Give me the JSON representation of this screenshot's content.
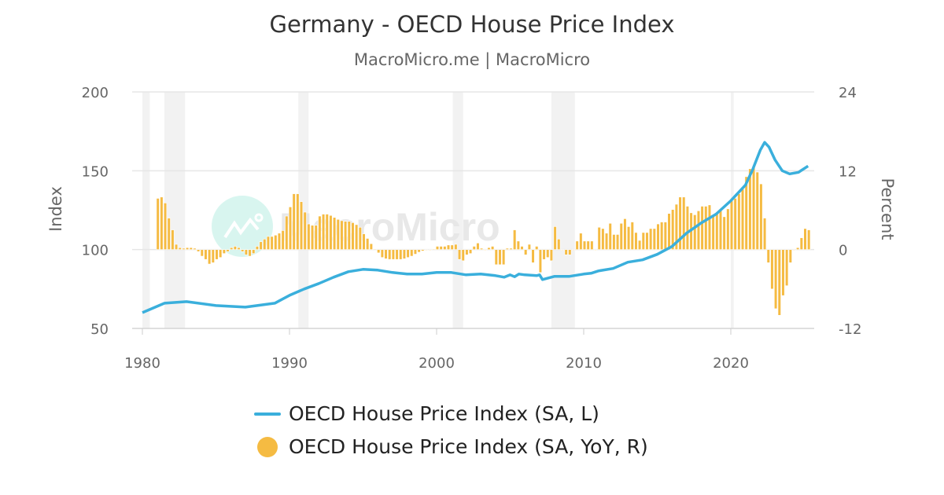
{
  "chart_data": {
    "type": "bar+line",
    "title": "Germany - OECD House Price Index",
    "subtitle": "MacroMicro.me | MacroMicro",
    "watermark": "MacroMicro",
    "x_ticks": [
      "1980",
      "1990",
      "2000",
      "2010",
      "2020"
    ],
    "x_range": [
      1980,
      2025.9
    ],
    "y_left": {
      "label": "Index",
      "range": [
        50,
        200
      ],
      "ticks": [
        "200",
        "150",
        "100",
        "50"
      ]
    },
    "y_right": {
      "label": "Percent",
      "range": [
        -12,
        24
      ],
      "ticks": [
        "24",
        "12",
        "0",
        "-12"
      ]
    },
    "grid": true,
    "legend_placement": "bottom",
    "recession_shading": [
      [
        1980.0,
        1980.5
      ],
      [
        1981.5,
        1982.9
      ],
      [
        1990.6,
        1991.3
      ],
      [
        2001.1,
        2001.8
      ],
      [
        2007.8,
        2009.4
      ],
      [
        2020.0,
        2020.2
      ]
    ],
    "series": [
      {
        "name": "OECD House Price Index (SA, L)",
        "type": "line",
        "axis": "left",
        "color": "#3aafdc",
        "points": [
          [
            1980,
            60
          ],
          [
            1981.5,
            66
          ],
          [
            1983,
            67
          ],
          [
            1985,
            64.5
          ],
          [
            1987,
            63.5
          ],
          [
            1989,
            66
          ],
          [
            1990,
            71
          ],
          [
            1991,
            75
          ],
          [
            1992,
            78.5
          ],
          [
            1993,
            82.5
          ],
          [
            1994,
            86
          ],
          [
            1995,
            87.5
          ],
          [
            1996,
            87
          ],
          [
            1997,
            85.5
          ],
          [
            1998,
            84.5
          ],
          [
            1999,
            84.5
          ],
          [
            2000,
            85.5
          ],
          [
            2001,
            85.5
          ],
          [
            2002,
            84
          ],
          [
            2003,
            84.5
          ],
          [
            2004,
            83.5
          ],
          [
            2004.6,
            82.5
          ],
          [
            2005,
            84
          ],
          [
            2005.3,
            82.8
          ],
          [
            2005.6,
            84.5
          ],
          [
            2006,
            84
          ],
          [
            2006.8,
            83.5
          ],
          [
            2007,
            84
          ],
          [
            2007.2,
            81
          ],
          [
            2008,
            83
          ],
          [
            2009,
            83
          ],
          [
            2010,
            84.5
          ],
          [
            2010.5,
            85
          ],
          [
            2011,
            86.5
          ],
          [
            2012,
            88
          ],
          [
            2013,
            92
          ],
          [
            2014,
            93.5
          ],
          [
            2015,
            97
          ],
          [
            2016,
            102
          ],
          [
            2017,
            110.5
          ],
          [
            2018,
            117
          ],
          [
            2019,
            122.5
          ],
          [
            2020,
            131
          ],
          [
            2021,
            141
          ],
          [
            2021.5,
            151
          ],
          [
            2022,
            163
          ],
          [
            2022.3,
            168
          ],
          [
            2022.6,
            165
          ],
          [
            2023,
            157
          ],
          [
            2023.5,
            150
          ],
          [
            2024,
            148
          ],
          [
            2024.6,
            149
          ],
          [
            2025.25,
            153
          ]
        ]
      },
      {
        "name": "OECD House Price Index (SA, YoY, R)",
        "type": "bar",
        "axis": "right",
        "color": "#f5bb42",
        "start_quarter": "1981Q1",
        "values": [
          7.8,
          8.0,
          7.1,
          4.8,
          3.0,
          0.8,
          0.3,
          0.2,
          0.3,
          0.3,
          0.2,
          -0.3,
          -1.0,
          -1.5,
          -2.2,
          -2.0,
          -1.5,
          -1.2,
          -0.6,
          -0.3,
          0.3,
          0.5,
          0.3,
          -0.3,
          -0.8,
          -1.0,
          -0.6,
          0.5,
          1.2,
          1.6,
          2.0,
          2.0,
          2.2,
          2.5,
          2.9,
          5.1,
          6.5,
          8.5,
          8.5,
          7.3,
          5.7,
          3.9,
          3.7,
          3.7,
          5.1,
          5.4,
          5.4,
          5.2,
          4.9,
          4.6,
          4.4,
          4.3,
          4.3,
          4.1,
          3.8,
          3.4,
          2.4,
          1.7,
          0.9,
          0.1,
          -0.5,
          -1.2,
          -1.4,
          -1.5,
          -1.5,
          -1.5,
          -1.5,
          -1.4,
          -1.2,
          -1.0,
          -0.7,
          -0.4,
          -0.2,
          0.0,
          0.0,
          0.1,
          0.5,
          0.5,
          0.5,
          0.7,
          0.7,
          0.8,
          -1.5,
          -1.7,
          -0.8,
          -0.6,
          0.5,
          1.0,
          0.2,
          0.0,
          0.3,
          0.5,
          -2.3,
          -2.3,
          -2.3,
          0.2,
          0.2,
          3.0,
          1.3,
          0.5,
          -0.8,
          0.8,
          -2.0,
          0.5,
          -3.5,
          -1.5,
          -1.2,
          -1.7,
          3.5,
          1.6,
          0.0,
          -0.8,
          -0.8,
          0.0,
          1.3,
          2.5,
          1.3,
          1.3,
          1.3,
          0.0,
          3.4,
          3.2,
          2.5,
          4.0,
          2.3,
          2.3,
          4.0,
          4.7,
          3.5,
          4.2,
          2.6,
          1.4,
          2.6,
          2.6,
          3.2,
          3.2,
          3.9,
          4.2,
          4.2,
          5.5,
          6.1,
          6.9,
          8.0,
          8.0,
          6.6,
          5.6,
          5.3,
          5.9,
          6.6,
          6.6,
          6.8,
          5.1,
          5.6,
          5.9,
          5.0,
          6.2,
          7.4,
          7.8,
          8.5,
          9.2,
          11.1,
          12.3,
          12.6,
          11.8,
          10.0,
          4.8,
          -2.0,
          -6.0,
          -9.0,
          -10.0,
          -7.0,
          -5.5,
          -2.0,
          0.0,
          0.3,
          1.8,
          3.2,
          3.0
        ]
      }
    ]
  }
}
